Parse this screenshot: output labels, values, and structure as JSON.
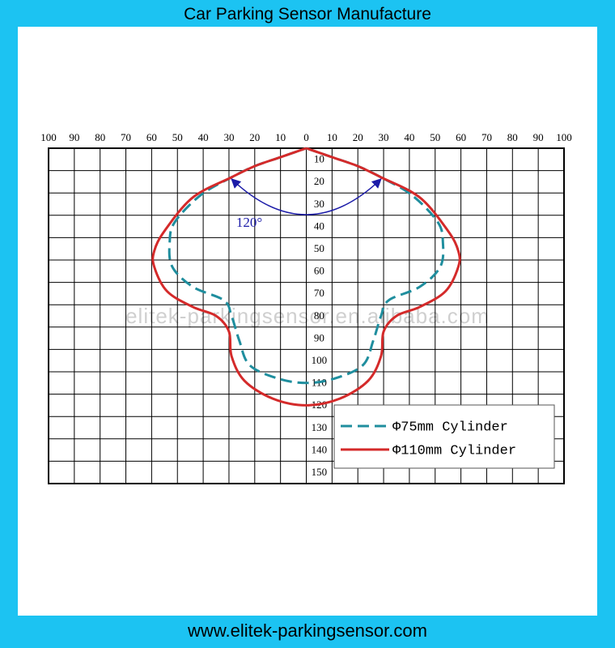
{
  "footer": "www.elitek-parkingsensor.com",
  "chart_data": {
    "type": "line",
    "title": "Car Parking Sensor Manufacture",
    "watermark": "elitek-parkingsensor.en.alibaba.com",
    "annotation": "120°",
    "xlim": [
      -100,
      100
    ],
    "xticks": [
      {
        "value": -100,
        "label": "100"
      },
      {
        "value": -90,
        "label": "90"
      },
      {
        "value": -80,
        "label": "80"
      },
      {
        "value": -70,
        "label": "70"
      },
      {
        "value": -60,
        "label": "60"
      },
      {
        "value": -50,
        "label": "50"
      },
      {
        "value": -40,
        "label": "40"
      },
      {
        "value": -30,
        "label": "30"
      },
      {
        "value": -20,
        "label": "20"
      },
      {
        "value": -10,
        "label": "10"
      },
      0,
      10,
      20,
      30,
      40,
      50,
      60,
      70,
      80,
      90,
      100
    ],
    "ylim": [
      0,
      150
    ],
    "y_inverted": true,
    "yticks": [
      10,
      20,
      30,
      40,
      50,
      60,
      70,
      80,
      90,
      100,
      110,
      120,
      130,
      140,
      150
    ],
    "grid": true,
    "legend": "lower right",
    "series": [
      {
        "name": "Φ75mm Cylinder",
        "color": "#1f8e9e",
        "dash": true,
        "x": [
          0,
          10,
          20,
          29,
          41,
          51,
          53,
          52,
          44,
          32,
          29,
          26,
          22,
          11,
          0,
          -11,
          -22,
          -26,
          -29,
          -32,
          -44,
          -52,
          -53,
          -51,
          -41,
          -29,
          -20,
          -10,
          0
        ],
        "values": [
          0,
          4,
          8,
          13,
          21,
          33,
          42,
          53,
          62,
          68,
          75,
          86,
          97,
          103,
          105,
          103,
          97,
          86,
          75,
          68,
          62,
          53,
          42,
          33,
          21,
          13,
          8,
          4,
          0
        ]
      },
      {
        "name": "Φ110mm Cylinder",
        "color": "#d42a2a",
        "dash": false,
        "x": [
          0,
          10,
          20,
          29,
          44,
          55,
          59,
          59,
          54,
          44,
          35,
          30,
          29,
          24,
          13,
          0,
          -13,
          -24,
          -29,
          -30,
          -35,
          -44,
          -54,
          -59,
          -59,
          -55,
          -44,
          -29,
          -20,
          -10,
          0
        ],
        "values": [
          0,
          4,
          8,
          13,
          22,
          37,
          46,
          53,
          64,
          71,
          75,
          82,
          93,
          104,
          112,
          115,
          112,
          104,
          93,
          82,
          75,
          71,
          64,
          53,
          46,
          37,
          22,
          13,
          8,
          4,
          0
        ]
      }
    ]
  }
}
